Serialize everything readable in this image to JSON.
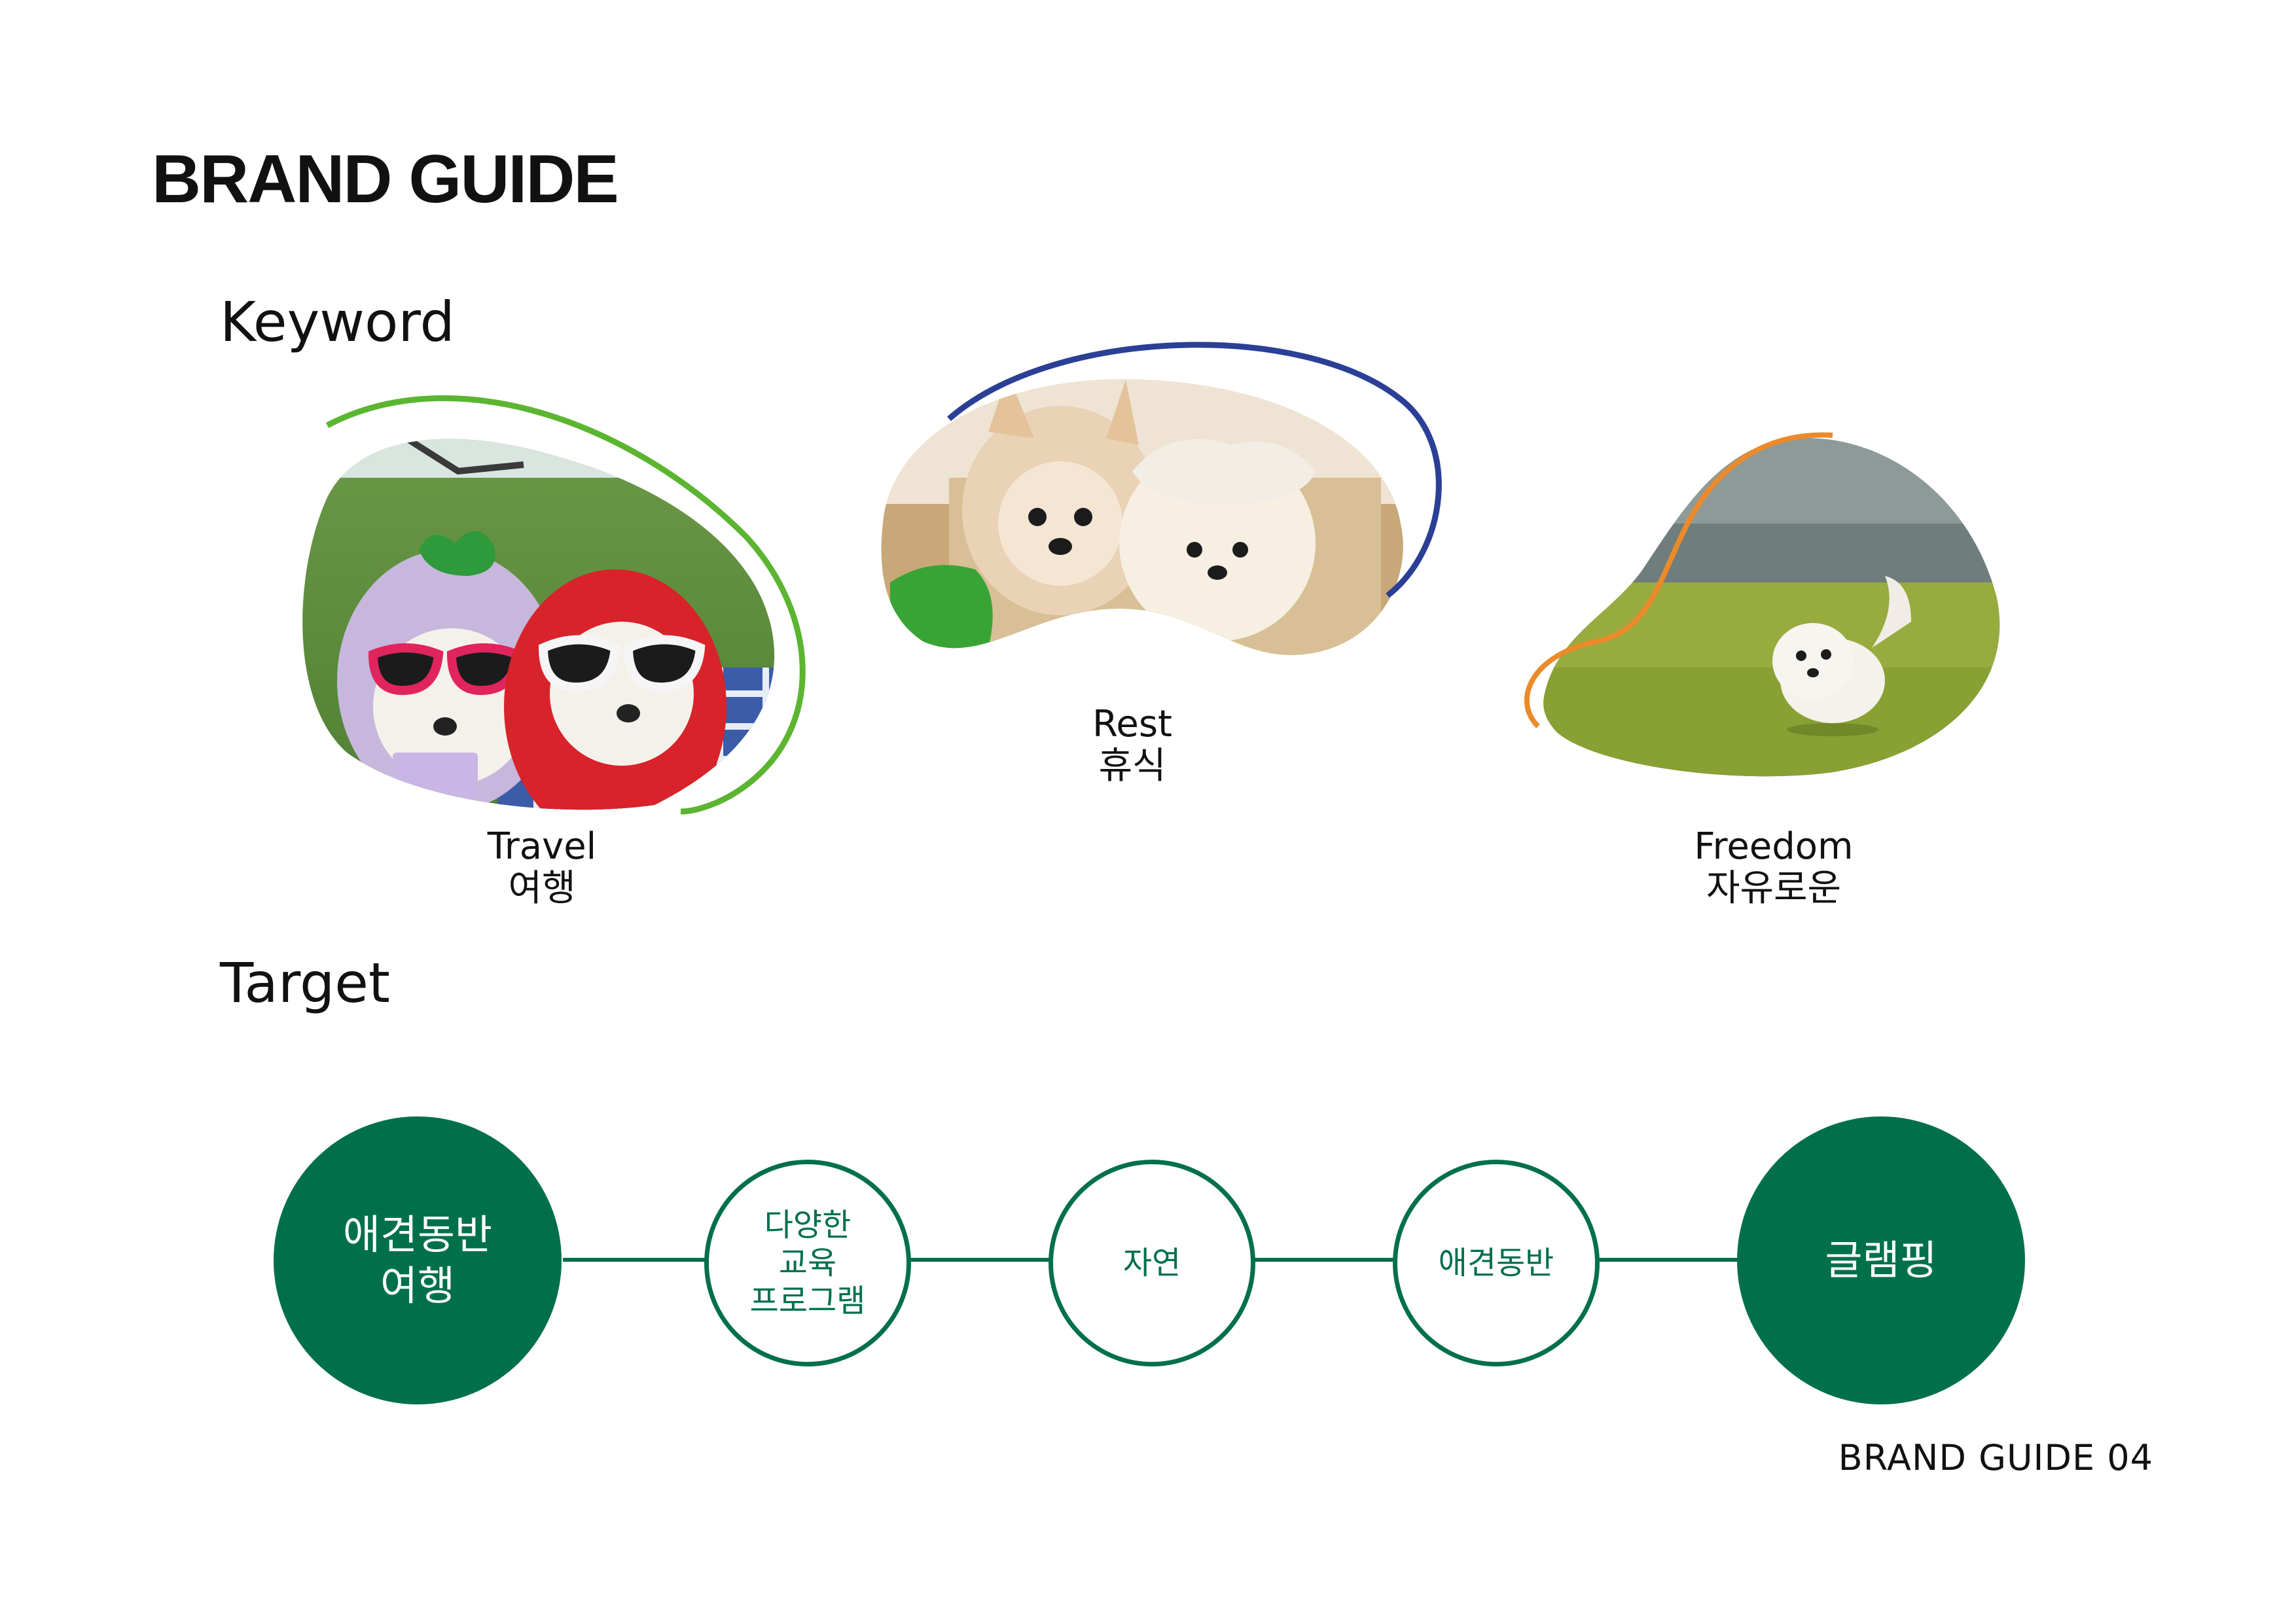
{
  "page": {
    "title": "BRAND GUIDE",
    "footer": "BRAND GUIDE 04"
  },
  "keyword": {
    "heading": "Keyword",
    "items": [
      {
        "en": "Travel",
        "ko": "여행",
        "accent": "#5cb531"
      },
      {
        "en": "Rest",
        "ko": "휴식",
        "accent": "#2b3f96"
      },
      {
        "en": "Freedom",
        "ko": "자유로운",
        "accent": "#ec8a2a"
      }
    ]
  },
  "target": {
    "heading": "Target",
    "line_color": "#00704a",
    "circles": [
      {
        "label": "애견동반\n여행",
        "style": "filled"
      },
      {
        "label": "다양한\n교육\n프로그램",
        "style": "outline"
      },
      {
        "label": "자연",
        "style": "outline"
      },
      {
        "label": "애견동반",
        "style": "outline"
      },
      {
        "label": "글램핑",
        "style": "filled"
      }
    ]
  }
}
